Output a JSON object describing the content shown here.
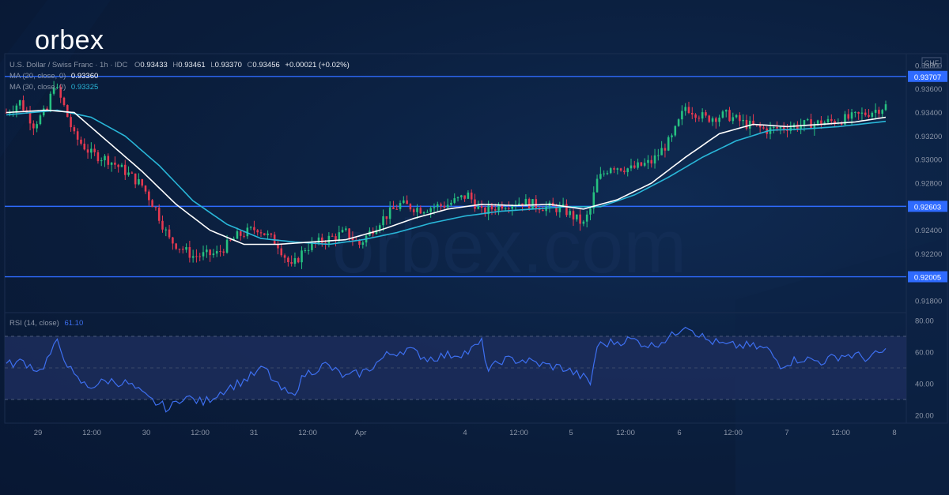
{
  "brand": {
    "logo_text": "orbex",
    "watermark": "orbex.com",
    "accent_red": "#e53935"
  },
  "chart_data": [
    {
      "type": "candlestick",
      "instrument": "U.S. Dollar / Swiss Franc",
      "timeframe": "1h",
      "source": "IDC",
      "header": {
        "symbol": "U.S. Dollar / Swiss Franc · 1h · IDC",
        "o_label": "O",
        "o_value": "0.93433",
        "h_label": "H",
        "h_value": "0.93461",
        "l_label": "L",
        "l_value": "0.93370",
        "c_label": "C",
        "c_value": "0.93456",
        "change": "+0.00021 (+0.02%)"
      },
      "currency_label": "CHF",
      "ylim": [
        0.917,
        0.939
      ],
      "y_ticks": [
        "0.93800",
        "0.93600",
        "0.93400",
        "0.93200",
        "0.93000",
        "0.92800",
        "0.92600",
        "0.92400",
        "0.92200",
        "0.92000",
        "0.91800"
      ],
      "x_ticks": [
        "29",
        "12:00",
        "30",
        "12:00",
        "31",
        "12:00",
        "Apr",
        "4",
        "12:00",
        "5",
        "12:00",
        "6",
        "12:00",
        "7",
        "12:00",
        "8"
      ],
      "horizontal_levels": [
        {
          "value": 0.93707,
          "label": "0.93707"
        },
        {
          "value": 0.92603,
          "label": "0.92603"
        },
        {
          "value": 0.92005,
          "label": "0.92005"
        }
      ],
      "ma_legend": [
        {
          "text": "MA (20, close, 0)",
          "value": "0.93360",
          "color": "#ffffff"
        },
        {
          "text": "MA (30, close, 0)",
          "value": "0.93325",
          "color": "#29b6d8"
        }
      ],
      "close_anchors": [
        [
          0,
          0.934
        ],
        [
          4,
          0.9349
        ],
        [
          8,
          0.933
        ],
        [
          12,
          0.9342
        ],
        [
          14,
          0.9365
        ],
        [
          17,
          0.9345
        ],
        [
          20,
          0.932
        ],
        [
          25,
          0.9305
        ],
        [
          30,
          0.93
        ],
        [
          35,
          0.929
        ],
        [
          40,
          0.9278
        ],
        [
          44,
          0.9258
        ],
        [
          48,
          0.9232
        ],
        [
          55,
          0.9218
        ],
        [
          62,
          0.922
        ],
        [
          68,
          0.9235
        ],
        [
          74,
          0.9242
        ],
        [
          80,
          0.9228
        ],
        [
          84,
          0.9208
        ],
        [
          88,
          0.9225
        ],
        [
          94,
          0.9232
        ],
        [
          100,
          0.9238
        ],
        [
          104,
          0.9228
        ],
        [
          110,
          0.9248
        ],
        [
          116,
          0.9262
        ],
        [
          122,
          0.9258
        ],
        [
          130,
          0.9262
        ],
        [
          136,
          0.927
        ],
        [
          140,
          0.9255
        ],
        [
          146,
          0.9262
        ],
        [
          152,
          0.9264
        ],
        [
          158,
          0.926
        ],
        [
          164,
          0.9258
        ],
        [
          170,
          0.9245
        ],
        [
          172,
          0.9258
        ],
        [
          174,
          0.9282
        ],
        [
          178,
          0.9295
        ],
        [
          184,
          0.9292
        ],
        [
          190,
          0.9298
        ],
        [
          196,
          0.9318
        ],
        [
          200,
          0.9345
        ],
        [
          206,
          0.9335
        ],
        [
          212,
          0.9338
        ],
        [
          218,
          0.933
        ],
        [
          224,
          0.9325
        ],
        [
          230,
          0.9328
        ],
        [
          236,
          0.933
        ],
        [
          242,
          0.9332
        ],
        [
          248,
          0.9335
        ],
        [
          254,
          0.934
        ],
        [
          259,
          0.93456
        ]
      ],
      "ma20_anchors": [
        [
          0,
          0.934
        ],
        [
          12,
          0.9342
        ],
        [
          20,
          0.934
        ],
        [
          30,
          0.9315
        ],
        [
          40,
          0.929
        ],
        [
          50,
          0.9262
        ],
        [
          60,
          0.924
        ],
        [
          70,
          0.9228
        ],
        [
          80,
          0.9228
        ],
        [
          90,
          0.923
        ],
        [
          100,
          0.9232
        ],
        [
          110,
          0.924
        ],
        [
          120,
          0.925
        ],
        [
          130,
          0.9258
        ],
        [
          140,
          0.9262
        ],
        [
          150,
          0.9261
        ],
        [
          160,
          0.9262
        ],
        [
          170,
          0.9258
        ],
        [
          180,
          0.9266
        ],
        [
          190,
          0.928
        ],
        [
          200,
          0.9302
        ],
        [
          210,
          0.9322
        ],
        [
          220,
          0.933
        ],
        [
          230,
          0.9328
        ],
        [
          240,
          0.933
        ],
        [
          250,
          0.9332
        ],
        [
          259,
          0.9336
        ]
      ],
      "ma30_anchors": [
        [
          0,
          0.9338
        ],
        [
          15,
          0.9342
        ],
        [
          25,
          0.9336
        ],
        [
          35,
          0.932
        ],
        [
          45,
          0.9295
        ],
        [
          55,
          0.9265
        ],
        [
          65,
          0.9245
        ],
        [
          75,
          0.9233
        ],
        [
          85,
          0.923
        ],
        [
          95,
          0.9228
        ],
        [
          105,
          0.9232
        ],
        [
          115,
          0.9238
        ],
        [
          125,
          0.9246
        ],
        [
          135,
          0.9252
        ],
        [
          145,
          0.9256
        ],
        [
          155,
          0.9258
        ],
        [
          165,
          0.926
        ],
        [
          175,
          0.926
        ],
        [
          185,
          0.927
        ],
        [
          195,
          0.9285
        ],
        [
          205,
          0.9302
        ],
        [
          215,
          0.9316
        ],
        [
          225,
          0.9325
        ],
        [
          235,
          0.9326
        ],
        [
          245,
          0.9328
        ],
        [
          259,
          0.93325
        ]
      ]
    },
    {
      "type": "line",
      "name": "RSI",
      "legend_text": "RSI (14, close)",
      "value": "61.10",
      "ylim": [
        15,
        85
      ],
      "y_ticks": [
        "80.00",
        "60.00",
        "40.00",
        "20.00"
      ],
      "band": [
        30,
        70
      ],
      "mid": 50,
      "rsi_anchors": [
        [
          0,
          52
        ],
        [
          5,
          54
        ],
        [
          10,
          48
        ],
        [
          15,
          66
        ],
        [
          20,
          44
        ],
        [
          24,
          38
        ],
        [
          30,
          42
        ],
        [
          36,
          40
        ],
        [
          42,
          30
        ],
        [
          48,
          24
        ],
        [
          52,
          32
        ],
        [
          58,
          28
        ],
        [
          64,
          36
        ],
        [
          70,
          42
        ],
        [
          76,
          50
        ],
        [
          80,
          38
        ],
        [
          84,
          32
        ],
        [
          88,
          46
        ],
        [
          94,
          52
        ],
        [
          100,
          44
        ],
        [
          106,
          48
        ],
        [
          112,
          58
        ],
        [
          118,
          62
        ],
        [
          124,
          56
        ],
        [
          130,
          58
        ],
        [
          136,
          60
        ],
        [
          140,
          66
        ],
        [
          142,
          48
        ],
        [
          146,
          55
        ],
        [
          152,
          55
        ],
        [
          158,
          52
        ],
        [
          164,
          50
        ],
        [
          170,
          44
        ],
        [
          172,
          40
        ],
        [
          174,
          64
        ],
        [
          178,
          66
        ],
        [
          184,
          68
        ],
        [
          190,
          64
        ],
        [
          196,
          70
        ],
        [
          200,
          78
        ],
        [
          206,
          68
        ],
        [
          212,
          64
        ],
        [
          218,
          64
        ],
        [
          224,
          62
        ],
        [
          228,
          52
        ],
        [
          234,
          56
        ],
        [
          240,
          54
        ],
        [
          246,
          58
        ],
        [
          250,
          58
        ],
        [
          254,
          56
        ],
        [
          259,
          61
        ]
      ]
    }
  ],
  "theme": {
    "bg": "#0a1d3b",
    "up": "#26c281",
    "down": "#e53950",
    "level_line": "#2f6bff",
    "ma20": "#ffffff",
    "ma30": "#29b6d8",
    "rsi_line": "#3d6ff0",
    "rsi_band": "#1c2d5c",
    "axis_text": "#8a94a6",
    "grid": "#1a2d4f"
  }
}
